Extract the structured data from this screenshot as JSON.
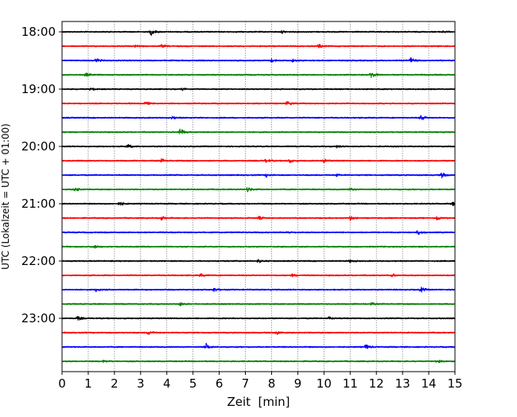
{
  "chart_data": {
    "type": "line",
    "subtype": "helicorder",
    "xlabel": "Zeit  [min]",
    "ylabel": "UTC (Lokalzeit = UTC + 01:00)",
    "xlim": [
      0,
      15
    ],
    "xticks": [
      "0",
      "1",
      "2",
      "3",
      "4",
      "5",
      "6",
      "7",
      "8",
      "9",
      "10",
      "11",
      "12",
      "13",
      "14",
      "15"
    ],
    "ytick_labels": [
      {
        "row": 0,
        "label": "18:00"
      },
      {
        "row": 4,
        "label": "19:00"
      },
      {
        "row": 8,
        "label": "20:00"
      },
      {
        "row": 12,
        "label": "21:00"
      },
      {
        "row": 16,
        "label": "22:00"
      },
      {
        "row": 20,
        "label": "23:00"
      }
    ],
    "grid": "vertical dotted, every minute",
    "row_interval_min": 15,
    "colors": [
      "#000000",
      "#ff0000",
      "#0000ff",
      "#008000"
    ],
    "traces": [
      {
        "start": "18:00",
        "events": [
          [
            3.4,
            4
          ],
          [
            8.4,
            1.5
          ],
          [
            14.5,
            1.5
          ]
        ]
      },
      {
        "start": "18:15",
        "events": [
          [
            2.8,
            1.5
          ],
          [
            3.8,
            1.5
          ],
          [
            9.8,
            2.5
          ]
        ]
      },
      {
        "start": "18:30",
        "events": [
          [
            1.3,
            2.5
          ],
          [
            8.0,
            2
          ],
          [
            8.8,
            1.5
          ],
          [
            13.3,
            3.5
          ]
        ]
      },
      {
        "start": "18:45",
        "events": [
          [
            0.9,
            2
          ],
          [
            11.8,
            4.5
          ]
        ]
      },
      {
        "start": "19:00",
        "events": [
          [
            1.1,
            1.5
          ],
          [
            4.6,
            1.2
          ]
        ]
      },
      {
        "start": "19:15",
        "events": [
          [
            3.2,
            2
          ],
          [
            8.6,
            2.5
          ]
        ]
      },
      {
        "start": "19:30",
        "events": [
          [
            4.2,
            1.5
          ],
          [
            13.7,
            3.5
          ]
        ]
      },
      {
        "start": "19:45",
        "events": [
          [
            4.5,
            5
          ]
        ]
      },
      {
        "start": "20:00",
        "events": [
          [
            2.5,
            2.5
          ],
          [
            10.5,
            1.5
          ]
        ]
      },
      {
        "start": "20:15",
        "events": [
          [
            3.8,
            2
          ],
          [
            7.8,
            2.5
          ],
          [
            8.7,
            2.5
          ],
          [
            10.0,
            2
          ]
        ]
      },
      {
        "start": "20:30",
        "events": [
          [
            7.8,
            2
          ],
          [
            10.5,
            1.5
          ],
          [
            14.5,
            3
          ]
        ]
      },
      {
        "start": "20:45",
        "events": [
          [
            0.5,
            2.5
          ],
          [
            7.1,
            3
          ],
          [
            11.0,
            1.5
          ]
        ]
      },
      {
        "start": "21:00",
        "events": [
          [
            2.2,
            2.5
          ],
          [
            14.9,
            2.5
          ]
        ]
      },
      {
        "start": "21:15",
        "events": [
          [
            3.8,
            2.5
          ],
          [
            7.5,
            2
          ],
          [
            11.0,
            2.5
          ],
          [
            14.3,
            3
          ]
        ]
      },
      {
        "start": "21:30",
        "events": [
          [
            8.6,
            1.5
          ],
          [
            13.6,
            3
          ]
        ]
      },
      {
        "start": "21:45",
        "events": [
          [
            1.2,
            2
          ]
        ]
      },
      {
        "start": "22:00",
        "events": [
          [
            7.5,
            2
          ],
          [
            11.0,
            1.5
          ]
        ]
      },
      {
        "start": "22:15",
        "events": [
          [
            5.3,
            2
          ],
          [
            8.8,
            1.5
          ],
          [
            12.6,
            1.5
          ]
        ]
      },
      {
        "start": "22:30",
        "events": [
          [
            1.3,
            2
          ],
          [
            5.8,
            2.5
          ],
          [
            13.7,
            3
          ]
        ]
      },
      {
        "start": "22:45",
        "events": [
          [
            4.5,
            2
          ],
          [
            11.8,
            1.5
          ]
        ]
      },
      {
        "start": "23:00",
        "events": [
          [
            0.6,
            2.5
          ],
          [
            10.2,
            1.5
          ]
        ]
      },
      {
        "start": "23:15",
        "events": [
          [
            3.3,
            2.5
          ],
          [
            8.2,
            2.5
          ]
        ]
      },
      {
        "start": "23:30",
        "events": [
          [
            5.5,
            4
          ],
          [
            11.6,
            3
          ]
        ]
      },
      {
        "start": "23:45",
        "events": [
          [
            1.6,
            1.5
          ],
          [
            14.3,
            2
          ]
        ]
      }
    ]
  }
}
